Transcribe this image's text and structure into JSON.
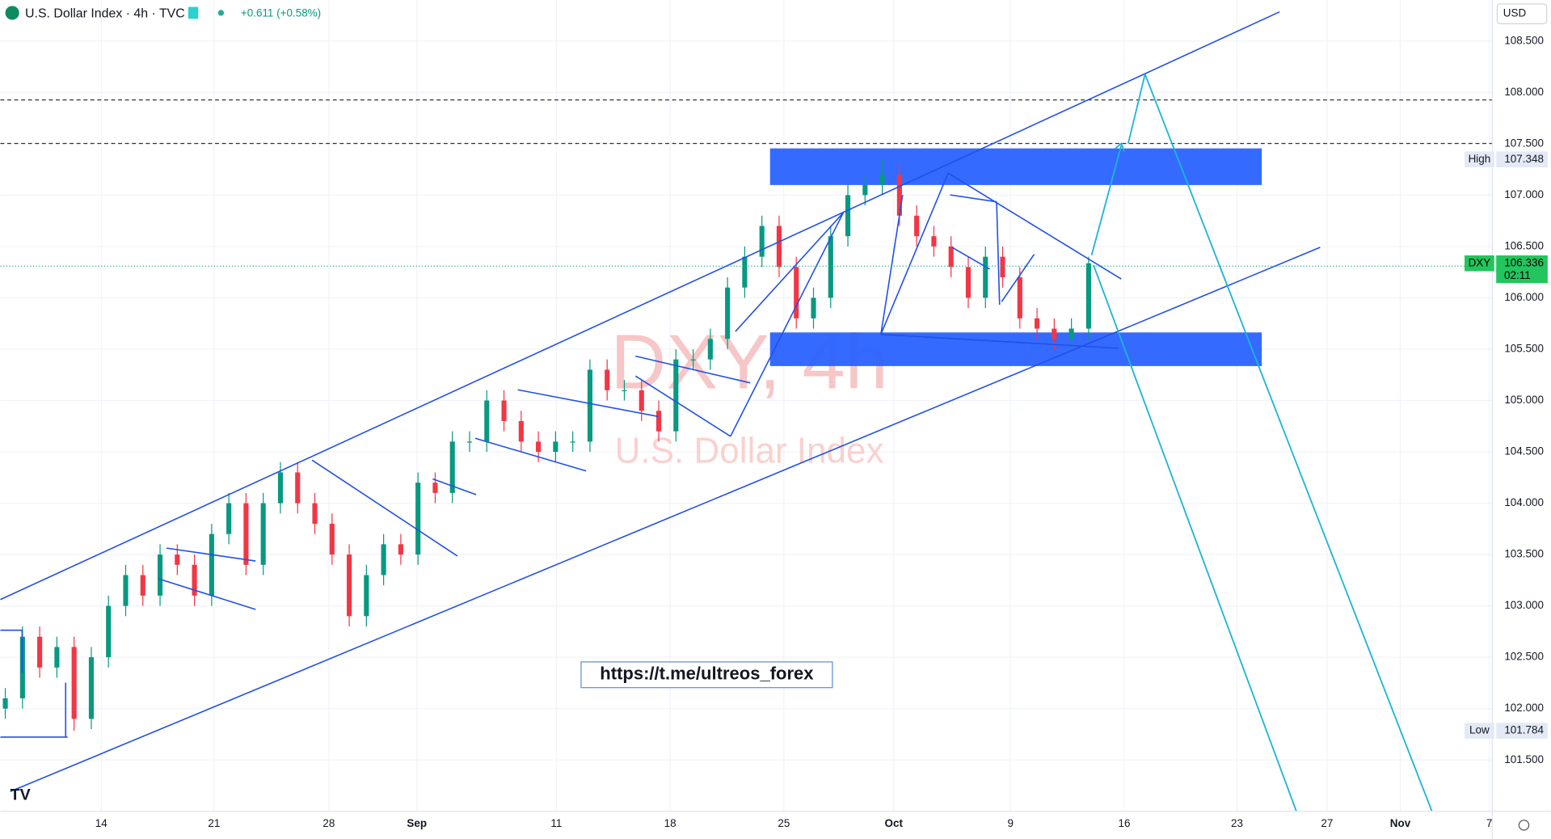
{
  "chart_data": {
    "type": "candlestick",
    "title": "U.S. Dollar Index · 4h · TVC",
    "change": "+0.611 (+0.58%)",
    "currency": "USD",
    "watermark": "DXY, 4h",
    "watermark_subtitle": "U.S. Dollar Index",
    "annotation": "https://t.me/ultreos_forex",
    "ylim": [
      101.0,
      108.9
    ],
    "yticks": [
      {
        "value": 101.5,
        "label": "101.500"
      },
      {
        "value": 102,
        "label": "102.000"
      },
      {
        "value": 102.5,
        "label": "102.500"
      },
      {
        "value": 103,
        "label": "103.000"
      },
      {
        "value": 103.5,
        "label": "103.500"
      },
      {
        "value": 104,
        "label": "104.000"
      },
      {
        "value": 104.5,
        "label": "104.500"
      },
      {
        "value": 105,
        "label": "105.000"
      },
      {
        "value": 105.5,
        "label": "105.500"
      },
      {
        "value": 106,
        "label": "106.000"
      },
      {
        "value": 106.5,
        "label": "106.500"
      },
      {
        "value": 107,
        "label": "107.000"
      },
      {
        "value": 107.5,
        "label": "107.500"
      },
      {
        "value": 108,
        "label": "108.000"
      },
      {
        "value": 108.5,
        "label": "108.500"
      }
    ],
    "x_labels": [
      "14",
      "21",
      "28",
      "Sep",
      "11",
      "18",
      "25",
      "Oct",
      "9",
      "16",
      "23",
      "27",
      "Nov",
      "7"
    ],
    "high": {
      "label": "High",
      "value": 107.348
    },
    "low": {
      "label": "Low",
      "value": 101.784
    },
    "last": {
      "label": "DXY",
      "value": 106.336,
      "countdown": "02:11"
    },
    "up_color": "#089981",
    "down_color": "#f23645",
    "open": [
      102.0,
      102.1,
      102.7,
      102.4,
      102.6,
      101.9,
      102.5,
      103.0,
      103.3,
      103.1,
      103.5,
      103.4,
      103.1,
      103.7,
      104.0,
      103.4,
      104.0,
      104.3,
      104.0,
      103.8,
      103.5,
      102.9,
      103.3,
      103.6,
      103.5,
      104.2,
      104.1,
      104.6,
      104.6,
      105.0,
      104.8,
      104.6,
      104.5,
      104.6,
      104.6,
      105.3,
      105.1,
      105.1,
      104.9,
      104.7,
      105.4,
      105.4,
      105.6,
      106.1,
      106.4,
      106.7,
      106.3,
      105.8,
      106.0,
      106.6,
      107.0,
      107.1,
      107.2,
      106.8,
      106.6,
      106.5,
      106.3,
      106.0,
      106.4,
      106.2,
      105.8,
      105.7,
      105.6,
      105.7
    ],
    "close": [
      102.1,
      102.7,
      102.4,
      102.6,
      101.9,
      102.5,
      103.0,
      103.3,
      103.1,
      103.5,
      103.4,
      103.1,
      103.7,
      104.0,
      103.4,
      104.0,
      104.3,
      104.0,
      103.8,
      103.5,
      102.9,
      103.3,
      103.6,
      103.5,
      104.2,
      104.1,
      104.6,
      104.6,
      105.0,
      104.8,
      104.6,
      104.5,
      104.6,
      104.6,
      105.3,
      105.1,
      105.1,
      104.9,
      104.7,
      105.4,
      105.4,
      105.6,
      106.1,
      106.4,
      106.7,
      106.3,
      105.8,
      106.0,
      106.6,
      107.0,
      107.1,
      107.2,
      106.8,
      106.6,
      106.5,
      106.3,
      106.0,
      106.4,
      106.2,
      105.8,
      105.7,
      105.6,
      105.7,
      106.336
    ],
    "high_values": [
      102.2,
      102.8,
      102.8,
      102.7,
      102.7,
      102.6,
      103.1,
      103.4,
      103.4,
      103.6,
      103.6,
      103.5,
      103.8,
      104.1,
      104.1,
      104.1,
      104.4,
      104.4,
      104.1,
      103.9,
      103.6,
      103.4,
      103.7,
      103.7,
      104.3,
      104.3,
      104.7,
      104.7,
      105.1,
      105.1,
      104.9,
      104.7,
      104.7,
      104.7,
      105.4,
      105.4,
      105.2,
      105.2,
      105.0,
      105.5,
      105.5,
      105.7,
      106.2,
      106.5,
      106.8,
      106.8,
      106.4,
      106.1,
      106.7,
      107.1,
      107.2,
      107.348,
      107.3,
      106.9,
      106.7,
      106.6,
      106.4,
      106.5,
      106.5,
      106.3,
      105.9,
      105.8,
      105.8,
      106.4
    ],
    "low_values": [
      101.9,
      102.0,
      102.3,
      102.3,
      101.784,
      101.8,
      102.4,
      102.9,
      103.0,
      103.0,
      103.3,
      103.0,
      103.0,
      103.6,
      103.3,
      103.3,
      103.9,
      103.9,
      103.7,
      103.4,
      102.8,
      102.8,
      103.2,
      103.4,
      103.4,
      104.0,
      104.0,
      104.5,
      104.5,
      104.7,
      104.5,
      104.4,
      104.4,
      104.5,
      104.5,
      105.0,
      105.0,
      104.8,
      104.6,
      104.6,
      105.3,
      105.3,
      105.5,
      106.0,
      106.3,
      106.2,
      105.7,
      105.7,
      105.9,
      106.5,
      106.9,
      107.0,
      106.7,
      106.5,
      106.4,
      106.2,
      105.9,
      105.9,
      106.1,
      105.7,
      105.6,
      105.5,
      105.5,
      105.6
    ]
  }
}
